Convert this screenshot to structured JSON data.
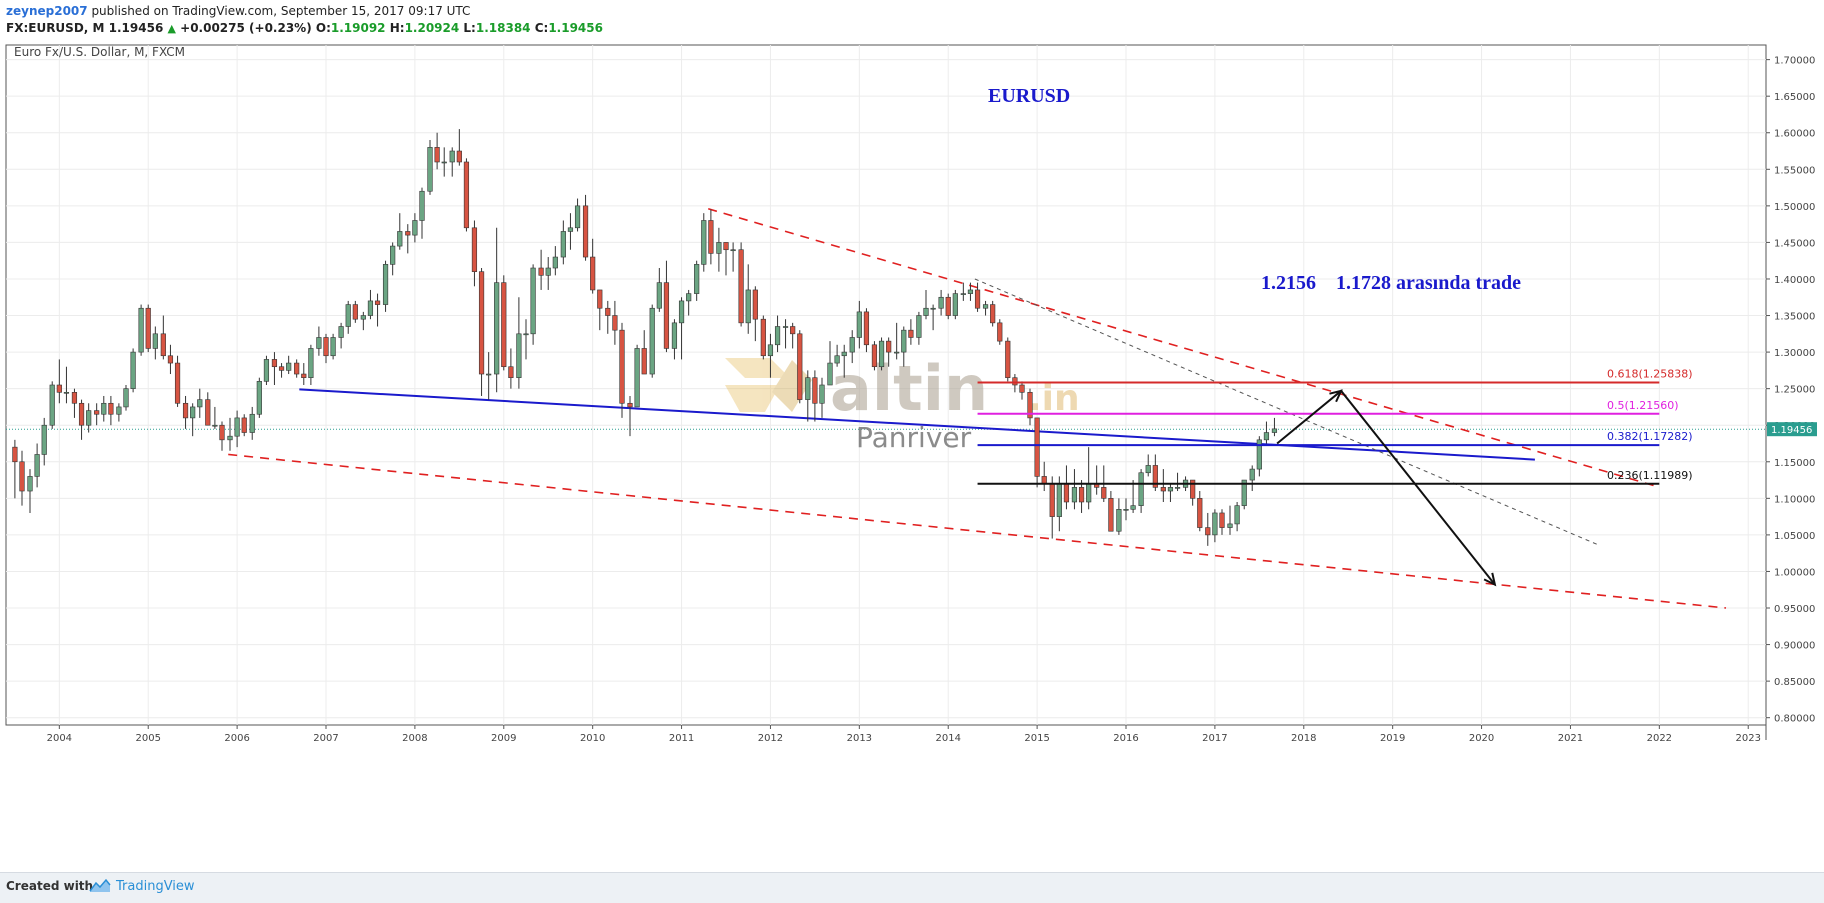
{
  "header": {
    "author": "zeynep2007",
    "published": " published on TradingView.com, September 15, 2017 09:17 UTC",
    "symbol_line": "FX:EURUSD, M  1.19456",
    "change_arrow": "▲",
    "change": "+0.00275 (+0.23%)",
    "o_label": "O:",
    "o_value": "1.19092",
    "h_label": "H:",
    "h_value": "1.20924",
    "l_label": "L:",
    "l_value": "1.18384",
    "c_label": "C:",
    "c_value": "1.19456"
  },
  "chart_data": {
    "type": "candlestick",
    "symbol_title": "Euro Fx/U.S. Dollar, M, FXCM",
    "title": "EURUSD",
    "annotation": "1.2156    1.1728 arasında trade",
    "watermark": [
      "altin",
      ".in",
      "Panriver"
    ],
    "x_labels": [
      "2004",
      "2005",
      "2006",
      "2007",
      "2008",
      "2009",
      "2010",
      "2011",
      "2012",
      "2013",
      "2014",
      "2015",
      "2016",
      "2017",
      "2018",
      "2019",
      "2020",
      "2021",
      "2022",
      "2023"
    ],
    "y_labels": [
      "1.70000",
      "1.65000",
      "1.60000",
      "1.55000",
      "1.50000",
      "1.45000",
      "1.40000",
      "1.35000",
      "1.30000",
      "1.25000",
      "1.20000",
      "1.15000",
      "1.10000",
      "1.05000",
      "1.00000",
      "0.95000",
      "0.90000",
      "0.85000",
      "0.80000"
    ],
    "ylim": [
      0.79,
      1.72
    ],
    "xlim": [
      2003.4,
      2023.2
    ],
    "last_price_label": "1.19456",
    "last_price": 1.19456,
    "fib_levels": [
      {
        "label": "0.618(1.25838)",
        "value": 1.25838,
        "color": "#d42a2a"
      },
      {
        "label": "0.5(1.21560)",
        "value": 1.2156,
        "color": "#e020e0"
      },
      {
        "label": "0.382(1.17282)",
        "value": 1.17282,
        "color": "#1a1acc"
      },
      {
        "label": "0.236(1.11989)",
        "value": 1.11989,
        "color": "#111111"
      }
    ],
    "trendlines": [
      {
        "name": "upper-channel",
        "from": [
          2011.3,
          1.496
        ],
        "to": [
          2021.95,
          1.117
        ],
        "color": "#e02020",
        "style": "dashed"
      },
      {
        "name": "lower-channel",
        "from": [
          2005.9,
          1.16
        ],
        "to": [
          2022.75,
          0.95
        ],
        "color": "#e02020",
        "style": "dashed"
      },
      {
        "name": "support-line",
        "from": [
          2006.7,
          1.249
        ],
        "to": [
          2020.6,
          1.153
        ],
        "color": "#1a1acc",
        "style": "solid"
      },
      {
        "name": "thin-trend",
        "from": [
          2014.3,
          1.4
        ],
        "to": [
          2021.3,
          1.037
        ],
        "color": "#555555",
        "style": "dotted"
      }
    ],
    "arrow_path": [
      [
        2017.7,
        1.175
      ],
      [
        2018.42,
        1.247
      ],
      [
        2020.15,
        0.982
      ]
    ],
    "candles": [
      [
        2003.5,
        1.17,
        1.15,
        1.18,
        1.1
      ],
      [
        2003.58,
        1.15,
        1.11,
        1.165,
        1.09
      ],
      [
        2003.67,
        1.11,
        1.13,
        1.14,
        1.08
      ],
      [
        2003.75,
        1.13,
        1.16,
        1.175,
        1.115
      ],
      [
        2003.83,
        1.16,
        1.2,
        1.21,
        1.145
      ],
      [
        2003.92,
        1.2,
        1.255,
        1.26,
        1.195
      ],
      [
        2004.0,
        1.255,
        1.245,
        1.29,
        1.23
      ],
      [
        2004.08,
        1.245,
        1.245,
        1.28,
        1.23
      ],
      [
        2004.17,
        1.245,
        1.23,
        1.25,
        1.21
      ],
      [
        2004.25,
        1.23,
        1.2,
        1.235,
        1.18
      ],
      [
        2004.33,
        1.2,
        1.22,
        1.23,
        1.19
      ],
      [
        2004.42,
        1.22,
        1.215,
        1.23,
        1.2
      ],
      [
        2004.5,
        1.215,
        1.23,
        1.24,
        1.205
      ],
      [
        2004.58,
        1.23,
        1.215,
        1.24,
        1.2
      ],
      [
        2004.67,
        1.215,
        1.225,
        1.23,
        1.205
      ],
      [
        2004.75,
        1.225,
        1.25,
        1.255,
        1.22
      ],
      [
        2004.83,
        1.25,
        1.3,
        1.305,
        1.245
      ],
      [
        2004.92,
        1.3,
        1.36,
        1.365,
        1.295
      ],
      [
        2005.0,
        1.36,
        1.305,
        1.365,
        1.3
      ],
      [
        2005.08,
        1.305,
        1.325,
        1.335,
        1.29
      ],
      [
        2005.17,
        1.325,
        1.295,
        1.35,
        1.29
      ],
      [
        2005.25,
        1.295,
        1.285,
        1.31,
        1.27
      ],
      [
        2005.33,
        1.285,
        1.23,
        1.295,
        1.225
      ],
      [
        2005.42,
        1.23,
        1.21,
        1.24,
        1.195
      ],
      [
        2005.5,
        1.21,
        1.225,
        1.23,
        1.185
      ],
      [
        2005.58,
        1.225,
        1.235,
        1.25,
        1.21
      ],
      [
        2005.67,
        1.235,
        1.2,
        1.245,
        1.2
      ],
      [
        2005.75,
        1.2,
        1.2,
        1.225,
        1.195
      ],
      [
        2005.83,
        1.2,
        1.18,
        1.205,
        1.165
      ],
      [
        2005.92,
        1.18,
        1.185,
        1.21,
        1.165
      ],
      [
        2006.0,
        1.185,
        1.21,
        1.22,
        1.17
      ],
      [
        2006.08,
        1.21,
        1.19,
        1.215,
        1.185
      ],
      [
        2006.17,
        1.19,
        1.215,
        1.225,
        1.18
      ],
      [
        2006.25,
        1.215,
        1.26,
        1.265,
        1.21
      ],
      [
        2006.33,
        1.26,
        1.29,
        1.295,
        1.255
      ],
      [
        2006.42,
        1.29,
        1.28,
        1.3,
        1.255
      ],
      [
        2006.5,
        1.28,
        1.275,
        1.285,
        1.265
      ],
      [
        2006.58,
        1.275,
        1.285,
        1.295,
        1.27
      ],
      [
        2006.67,
        1.285,
        1.27,
        1.29,
        1.265
      ],
      [
        2006.75,
        1.27,
        1.265,
        1.285,
        1.255
      ],
      [
        2006.83,
        1.265,
        1.305,
        1.31,
        1.255
      ],
      [
        2006.92,
        1.305,
        1.32,
        1.335,
        1.295
      ],
      [
        2007.0,
        1.32,
        1.295,
        1.325,
        1.285
      ],
      [
        2007.08,
        1.295,
        1.32,
        1.325,
        1.29
      ],
      [
        2007.17,
        1.32,
        1.335,
        1.34,
        1.305
      ],
      [
        2007.25,
        1.335,
        1.365,
        1.37,
        1.325
      ],
      [
        2007.33,
        1.365,
        1.345,
        1.37,
        1.34
      ],
      [
        2007.42,
        1.345,
        1.35,
        1.355,
        1.33
      ],
      [
        2007.5,
        1.35,
        1.37,
        1.385,
        1.345
      ],
      [
        2007.58,
        1.37,
        1.365,
        1.38,
        1.335
      ],
      [
        2007.67,
        1.365,
        1.42,
        1.425,
        1.355
      ],
      [
        2007.75,
        1.42,
        1.445,
        1.45,
        1.405
      ],
      [
        2007.83,
        1.445,
        1.465,
        1.49,
        1.44
      ],
      [
        2007.92,
        1.465,
        1.46,
        1.475,
        1.435
      ],
      [
        2008.0,
        1.46,
        1.48,
        1.49,
        1.45
      ],
      [
        2008.08,
        1.48,
        1.52,
        1.525,
        1.455
      ],
      [
        2008.17,
        1.52,
        1.58,
        1.59,
        1.515
      ],
      [
        2008.25,
        1.58,
        1.56,
        1.6,
        1.55
      ],
      [
        2008.33,
        1.56,
        1.56,
        1.58,
        1.54
      ],
      [
        2008.42,
        1.56,
        1.575,
        1.58,
        1.54
      ],
      [
        2008.5,
        1.575,
        1.56,
        1.605,
        1.555
      ],
      [
        2008.58,
        1.56,
        1.47,
        1.565,
        1.465
      ],
      [
        2008.67,
        1.47,
        1.41,
        1.48,
        1.39
      ],
      [
        2008.75,
        1.41,
        1.27,
        1.415,
        1.24
      ],
      [
        2008.83,
        1.27,
        1.27,
        1.3,
        1.235
      ],
      [
        2008.92,
        1.27,
        1.395,
        1.47,
        1.245
      ],
      [
        2009.0,
        1.395,
        1.28,
        1.405,
        1.275
      ],
      [
        2009.08,
        1.28,
        1.265,
        1.305,
        1.25
      ],
      [
        2009.17,
        1.265,
        1.325,
        1.375,
        1.25
      ],
      [
        2009.25,
        1.325,
        1.325,
        1.345,
        1.29
      ],
      [
        2009.33,
        1.325,
        1.415,
        1.42,
        1.31
      ],
      [
        2009.42,
        1.415,
        1.405,
        1.44,
        1.385
      ],
      [
        2009.5,
        1.405,
        1.415,
        1.43,
        1.385
      ],
      [
        2009.58,
        1.415,
        1.43,
        1.445,
        1.405
      ],
      [
        2009.67,
        1.43,
        1.465,
        1.48,
        1.42
      ],
      [
        2009.75,
        1.465,
        1.47,
        1.49,
        1.44
      ],
      [
        2009.83,
        1.47,
        1.5,
        1.51,
        1.465
      ],
      [
        2009.92,
        1.5,
        1.43,
        1.515,
        1.425
      ],
      [
        2010.0,
        1.43,
        1.385,
        1.455,
        1.38
      ],
      [
        2010.08,
        1.385,
        1.36,
        1.38,
        1.33
      ],
      [
        2010.17,
        1.36,
        1.35,
        1.37,
        1.325
      ],
      [
        2010.25,
        1.35,
        1.33,
        1.37,
        1.31
      ],
      [
        2010.33,
        1.33,
        1.23,
        1.34,
        1.21
      ],
      [
        2010.42,
        1.23,
        1.225,
        1.24,
        1.185
      ],
      [
        2010.5,
        1.225,
        1.305,
        1.31,
        1.225
      ],
      [
        2010.58,
        1.305,
        1.27,
        1.33,
        1.27
      ],
      [
        2010.67,
        1.27,
        1.36,
        1.365,
        1.265
      ],
      [
        2010.75,
        1.36,
        1.395,
        1.415,
        1.355
      ],
      [
        2010.83,
        1.395,
        1.305,
        1.425,
        1.3
      ],
      [
        2010.92,
        1.305,
        1.34,
        1.345,
        1.29
      ],
      [
        2011.0,
        1.34,
        1.37,
        1.375,
        1.29
      ],
      [
        2011.08,
        1.37,
        1.38,
        1.385,
        1.35
      ],
      [
        2011.17,
        1.38,
        1.42,
        1.425,
        1.37
      ],
      [
        2011.25,
        1.42,
        1.48,
        1.49,
        1.41
      ],
      [
        2011.33,
        1.48,
        1.435,
        1.495,
        1.42
      ],
      [
        2011.42,
        1.435,
        1.45,
        1.47,
        1.41
      ],
      [
        2011.5,
        1.45,
        1.44,
        1.45,
        1.405
      ],
      [
        2011.58,
        1.44,
        1.44,
        1.45,
        1.41
      ],
      [
        2011.67,
        1.44,
        1.34,
        1.45,
        1.335
      ],
      [
        2011.75,
        1.34,
        1.385,
        1.42,
        1.325
      ],
      [
        2011.83,
        1.385,
        1.345,
        1.39,
        1.315
      ],
      [
        2011.92,
        1.345,
        1.295,
        1.35,
        1.29
      ],
      [
        2012.0,
        1.295,
        1.31,
        1.325,
        1.265
      ],
      [
        2012.08,
        1.31,
        1.335,
        1.35,
        1.3
      ],
      [
        2012.17,
        1.335,
        1.335,
        1.345,
        1.305
      ],
      [
        2012.25,
        1.335,
        1.325,
        1.34,
        1.305
      ],
      [
        2012.33,
        1.325,
        1.235,
        1.33,
        1.23
      ],
      [
        2012.42,
        1.235,
        1.265,
        1.275,
        1.205
      ],
      [
        2012.5,
        1.265,
        1.23,
        1.275,
        1.205
      ],
      [
        2012.58,
        1.23,
        1.255,
        1.265,
        1.21
      ],
      [
        2012.67,
        1.255,
        1.285,
        1.315,
        1.255
      ],
      [
        2012.75,
        1.285,
        1.295,
        1.31,
        1.28
      ],
      [
        2012.83,
        1.295,
        1.3,
        1.31,
        1.265
      ],
      [
        2012.92,
        1.3,
        1.32,
        1.33,
        1.285
      ],
      [
        2013.0,
        1.32,
        1.355,
        1.37,
        1.305
      ],
      [
        2013.08,
        1.355,
        1.31,
        1.36,
        1.3
      ],
      [
        2013.17,
        1.31,
        1.28,
        1.315,
        1.275
      ],
      [
        2013.25,
        1.28,
        1.315,
        1.32,
        1.275
      ],
      [
        2013.33,
        1.315,
        1.3,
        1.32,
        1.28
      ],
      [
        2013.42,
        1.3,
        1.3,
        1.34,
        1.29
      ],
      [
        2013.5,
        1.3,
        1.33,
        1.335,
        1.28
      ],
      [
        2013.58,
        1.33,
        1.32,
        1.345,
        1.31
      ],
      [
        2013.67,
        1.32,
        1.35,
        1.355,
        1.31
      ],
      [
        2013.75,
        1.35,
        1.36,
        1.385,
        1.345
      ],
      [
        2013.83,
        1.36,
        1.36,
        1.365,
        1.33
      ],
      [
        2013.92,
        1.36,
        1.375,
        1.385,
        1.35
      ],
      [
        2014.0,
        1.375,
        1.35,
        1.38,
        1.345
      ],
      [
        2014.08,
        1.35,
        1.38,
        1.385,
        1.345
      ],
      [
        2014.17,
        1.38,
        1.38,
        1.395,
        1.37
      ],
      [
        2014.25,
        1.38,
        1.385,
        1.395,
        1.37
      ],
      [
        2014.33,
        1.385,
        1.36,
        1.395,
        1.355
      ],
      [
        2014.42,
        1.36,
        1.365,
        1.37,
        1.35
      ],
      [
        2014.5,
        1.365,
        1.34,
        1.37,
        1.335
      ],
      [
        2014.58,
        1.34,
        1.315,
        1.345,
        1.31
      ],
      [
        2014.67,
        1.315,
        1.265,
        1.32,
        1.26
      ],
      [
        2014.75,
        1.265,
        1.255,
        1.27,
        1.245
      ],
      [
        2014.83,
        1.255,
        1.245,
        1.26,
        1.235
      ],
      [
        2014.92,
        1.245,
        1.21,
        1.25,
        1.2
      ],
      [
        2015.0,
        1.21,
        1.13,
        1.21,
        1.115
      ],
      [
        2015.08,
        1.13,
        1.12,
        1.15,
        1.11
      ],
      [
        2015.17,
        1.12,
        1.075,
        1.13,
        1.045
      ],
      [
        2015.25,
        1.075,
        1.12,
        1.13,
        1.055
      ],
      [
        2015.33,
        1.12,
        1.095,
        1.145,
        1.085
      ],
      [
        2015.42,
        1.095,
        1.115,
        1.14,
        1.085
      ],
      [
        2015.5,
        1.115,
        1.095,
        1.125,
        1.08
      ],
      [
        2015.58,
        1.095,
        1.12,
        1.17,
        1.085
      ],
      [
        2015.67,
        1.12,
        1.115,
        1.145,
        1.105
      ],
      [
        2015.75,
        1.115,
        1.1,
        1.145,
        1.095
      ],
      [
        2015.83,
        1.1,
        1.055,
        1.11,
        1.055
      ],
      [
        2015.92,
        1.055,
        1.085,
        1.1,
        1.05
      ],
      [
        2016.0,
        1.085,
        1.085,
        1.1,
        1.07
      ],
      [
        2016.08,
        1.085,
        1.09,
        1.125,
        1.08
      ],
      [
        2016.17,
        1.09,
        1.135,
        1.14,
        1.08
      ],
      [
        2016.25,
        1.135,
        1.145,
        1.16,
        1.13
      ],
      [
        2016.33,
        1.145,
        1.115,
        1.16,
        1.11
      ],
      [
        2016.42,
        1.115,
        1.11,
        1.14,
        1.095
      ],
      [
        2016.5,
        1.11,
        1.115,
        1.12,
        1.095
      ],
      [
        2016.58,
        1.115,
        1.115,
        1.135,
        1.11
      ],
      [
        2016.67,
        1.115,
        1.125,
        1.13,
        1.11
      ],
      [
        2016.75,
        1.125,
        1.1,
        1.125,
        1.09
      ],
      [
        2016.83,
        1.1,
        1.06,
        1.11,
        1.055
      ],
      [
        2016.92,
        1.06,
        1.05,
        1.08,
        1.035
      ],
      [
        2017.0,
        1.05,
        1.08,
        1.085,
        1.04
      ],
      [
        2017.08,
        1.08,
        1.06,
        1.085,
        1.05
      ],
      [
        2017.17,
        1.06,
        1.065,
        1.09,
        1.05
      ],
      [
        2017.25,
        1.065,
        1.09,
        1.095,
        1.055
      ],
      [
        2017.33,
        1.09,
        1.125,
        1.125,
        1.085
      ],
      [
        2017.42,
        1.125,
        1.14,
        1.145,
        1.11
      ],
      [
        2017.5,
        1.14,
        1.18,
        1.185,
        1.13
      ],
      [
        2017.58,
        1.18,
        1.19,
        1.205,
        1.175
      ],
      [
        2017.67,
        1.19,
        1.195,
        1.21,
        1.185
      ]
    ]
  },
  "footer": {
    "created_with": "Created with",
    "brand": "TradingView"
  }
}
